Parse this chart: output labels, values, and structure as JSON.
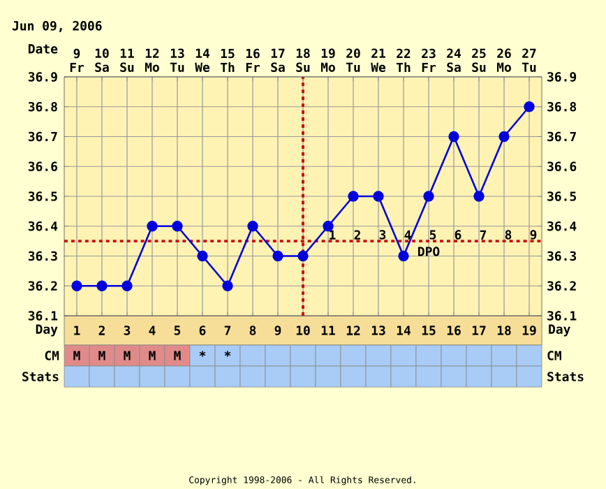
{
  "chart_data": [
    {
      "type": "line",
      "title": "Jun 09, 2006",
      "xlabel": "Day",
      "x2label": "Date",
      "x": [
        1,
        2,
        3,
        4,
        5,
        6,
        7,
        8,
        9,
        10,
        11,
        12,
        13,
        14,
        15,
        16,
        17,
        18,
        19
      ],
      "values": [
        36.2,
        36.2,
        36.2,
        36.4,
        36.4,
        36.3,
        36.2,
        36.4,
        36.3,
        36.3,
        36.4,
        36.5,
        36.5,
        36.3,
        36.5,
        36.7,
        36.5,
        36.7,
        36.8
      ],
      "color": "#0000dd",
      "marker": "circle",
      "grid": true,
      "xlim": [
        0.5,
        19.5
      ],
      "xticks": [
        1,
        2,
        3,
        4,
        5,
        6,
        7,
        8,
        9,
        10,
        11,
        12,
        13,
        14,
        15,
        16,
        17,
        18,
        19
      ],
      "x2lim": [
        8.5,
        27.5
      ],
      "x2ticks": [
        {
          "value": 9,
          "label": "9 Fr"
        },
        {
          "value": 10,
          "label": "10 Sa"
        },
        {
          "value": 11,
          "label": "11 Su"
        },
        {
          "value": 12,
          "label": "12 Mo"
        },
        {
          "value": 13,
          "label": "13 Tu"
        },
        {
          "value": 14,
          "label": "14 We"
        },
        {
          "value": 15,
          "label": "15 Th"
        },
        {
          "value": 16,
          "label": "16 Fr"
        },
        {
          "value": 17,
          "label": "17 Sa"
        },
        {
          "value": 18,
          "label": "18 Su"
        },
        {
          "value": 19,
          "label": "19 Mo"
        },
        {
          "value": 20,
          "label": "20 Tu"
        },
        {
          "value": 21,
          "label": "21 We"
        },
        {
          "value": 22,
          "label": "22 Th"
        },
        {
          "value": 23,
          "label": "23 Fr"
        },
        {
          "value": 24,
          "label": "24 Sa"
        },
        {
          "value": 25,
          "label": "25 Su"
        },
        {
          "value": 26,
          "label": "26 Mo"
        },
        {
          "value": 27,
          "label": "27 Tu"
        }
      ],
      "ylim": [
        36.1,
        36.9
      ],
      "yticks": [
        36.1,
        36.2,
        36.3,
        36.4,
        36.5,
        36.6,
        36.7,
        36.8,
        36.9
      ],
      "y2lim": [
        36.1,
        36.9
      ],
      "y2ticks": [
        36.1,
        36.2,
        36.3,
        36.4,
        36.5,
        36.6,
        36.7,
        36.8,
        36.9
      ],
      "ref_lines": [
        {
          "axis": "x",
          "value": 10,
          "color": "#cc1111",
          "line_style": "dotted"
        },
        {
          "axis": "y",
          "value": 36.35,
          "color": "#cc1111",
          "line_style": "dotted"
        }
      ],
      "annotations": [
        "1",
        "2",
        "3",
        "4",
        "5",
        "6",
        "7",
        "8",
        "9",
        "DPO",
        "Copyright 1998-2006 - All Rights Reserved."
      ]
    },
    {
      "type": "other",
      "y_categories": [
        "CM",
        "Stats"
      ],
      "y2_categories": [
        "CM",
        "Stats"
      ],
      "cell_labels": [
        [
          "M",
          "M",
          "M",
          "M",
          "M",
          "*",
          "*",
          null,
          null,
          null,
          null,
          null,
          null,
          null,
          null,
          null,
          null,
          null,
          null
        ],
        [
          null,
          null,
          null,
          null,
          null,
          null,
          null,
          null,
          null,
          null,
          null,
          null,
          null,
          null,
          null,
          null,
          null,
          null,
          null
        ]
      ],
      "colors": [
        [
          "#e08a8a",
          "#e08a8a",
          "#e08a8a",
          "#e08a8a",
          "#e08a8a",
          "#a8ccf5",
          "#a8ccf5",
          "#a8ccf5",
          "#a8ccf5",
          "#a8ccf5",
          "#a8ccf5",
          "#a8ccf5",
          "#a8ccf5",
          "#a8ccf5",
          "#a8ccf5",
          "#a8ccf5",
          "#a8ccf5",
          "#a8ccf5",
          "#a8ccf5"
        ],
        [
          "#a8ccf5",
          "#a8ccf5",
          "#a8ccf5",
          "#a8ccf5",
          "#a8ccf5",
          "#a8ccf5",
          "#a8ccf5",
          "#a8ccf5",
          "#a8ccf5",
          "#a8ccf5",
          "#a8ccf5",
          "#a8ccf5",
          "#a8ccf5",
          "#a8ccf5",
          "#a8ccf5",
          "#a8ccf5",
          "#a8ccf5",
          "#a8ccf5",
          "#a8ccf5"
        ]
      ]
    }
  ]
}
